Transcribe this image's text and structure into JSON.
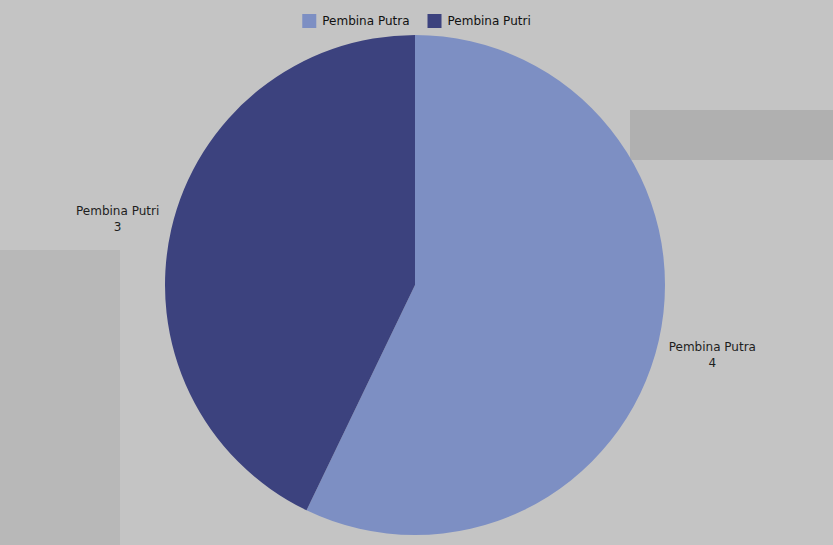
{
  "chart_data": {
    "type": "pie",
    "categories": [
      "Pembina Putra",
      "Pembina Putri"
    ],
    "values": [
      4,
      3
    ],
    "colors": [
      "#7d8fc3",
      "#3c427e"
    ],
    "legend": "top",
    "data_labels": true
  }
}
